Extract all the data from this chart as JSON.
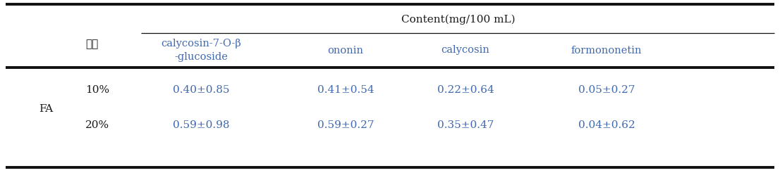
{
  "title": "Content(mg/100 mL)",
  "col_header_korean": "식혈",
  "col_headers": [
    "calycosin-7-O-β\n-glucoside",
    "ononin",
    "calycosin",
    "formononetin"
  ],
  "row_label_group": "FA",
  "rows": [
    {
      "label": "10%",
      "values": [
        "0.40±0.85",
        "0.41±0.54",
        "0.22±0.64",
        "0.05±0.27"
      ]
    },
    {
      "label": "20%",
      "values": [
        "0.59±0.98",
        "0.59±0.27",
        "0.35±0.47",
        "0.04±0.62"
      ]
    }
  ],
  "text_color_blue": "#4169B0",
  "text_color_black": "#1a1a1a",
  "bg_color": "#ffffff",
  "line_color": "#111111",
  "font_size": 10.5
}
